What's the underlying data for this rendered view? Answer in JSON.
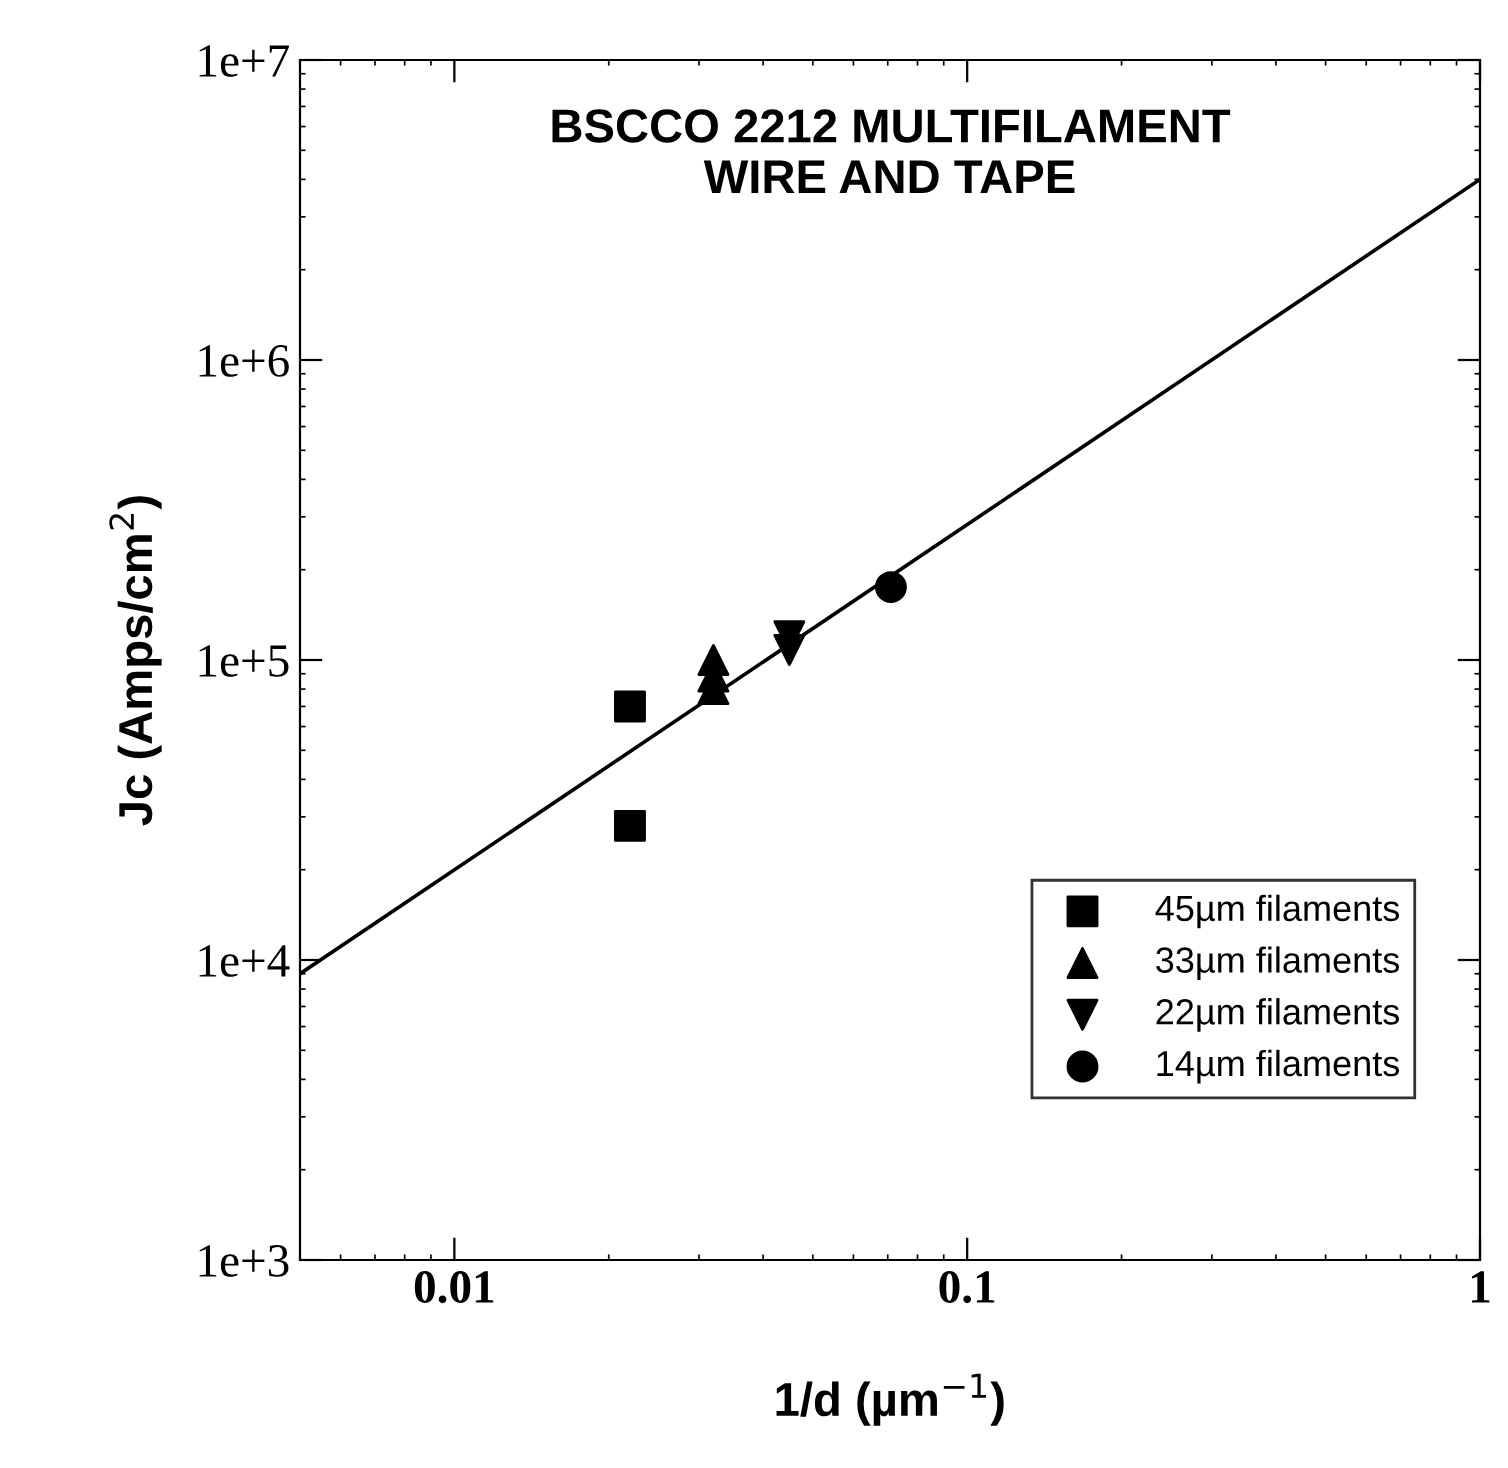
{
  "chart_data": {
    "type": "scatter",
    "title": "BSCCO 2212 MULTIFILAMENT\nWIRE AND TAPE",
    "xlabel": "1/d (µm$^{−1}$)",
    "ylabel": "Jc (Amps/cm$^{2}$)",
    "log": "xy",
    "xlim": [
      0.005,
      1
    ],
    "ylim": [
      1000,
      10000000
    ],
    "xticks": [
      {
        "value": 0.01,
        "label": "0.01"
      },
      {
        "value": 0.1,
        "label": "0.1"
      },
      {
        "value": 1,
        "label": "1"
      }
    ],
    "yticks": [
      {
        "value": 1000,
        "label": "1e+3"
      },
      {
        "value": 10000,
        "label": "1e+4"
      },
      {
        "value": 100000,
        "label": "1e+5"
      },
      {
        "value": 1000000,
        "label": "1e+6"
      },
      {
        "value": 10000000,
        "label": "1e+7"
      }
    ],
    "grid": false,
    "legend": "bottom right",
    "series": [
      {
        "name": "45µm filaments",
        "color": "#000000",
        "marker": "square",
        "x": [
          0.022,
          0.022
        ],
        "values": [
          70000,
          28000
        ]
      },
      {
        "name": "33µm filaments",
        "color": "#000000",
        "marker": "triangle",
        "x": [
          0.032,
          0.032,
          0.032
        ],
        "values": [
          100000,
          88000,
          80000
        ]
      },
      {
        "name": "22µm filaments",
        "color": "#000000",
        "marker": "triangle_down",
        "x": [
          0.045,
          0.045
        ],
        "values": [
          120000,
          108000
        ]
      },
      {
        "name": "14µm filaments",
        "color": "#000000",
        "marker": "circle",
        "x": [
          0.071
        ],
        "values": [
          175000
        ]
      },
      {
        "type": "line",
        "color": "#000000",
        "line_style": "solid",
        "marker": "none",
        "x": [
          0.005,
          1
        ],
        "values": [
          9000,
          4000000
        ]
      }
    ]
  }
}
